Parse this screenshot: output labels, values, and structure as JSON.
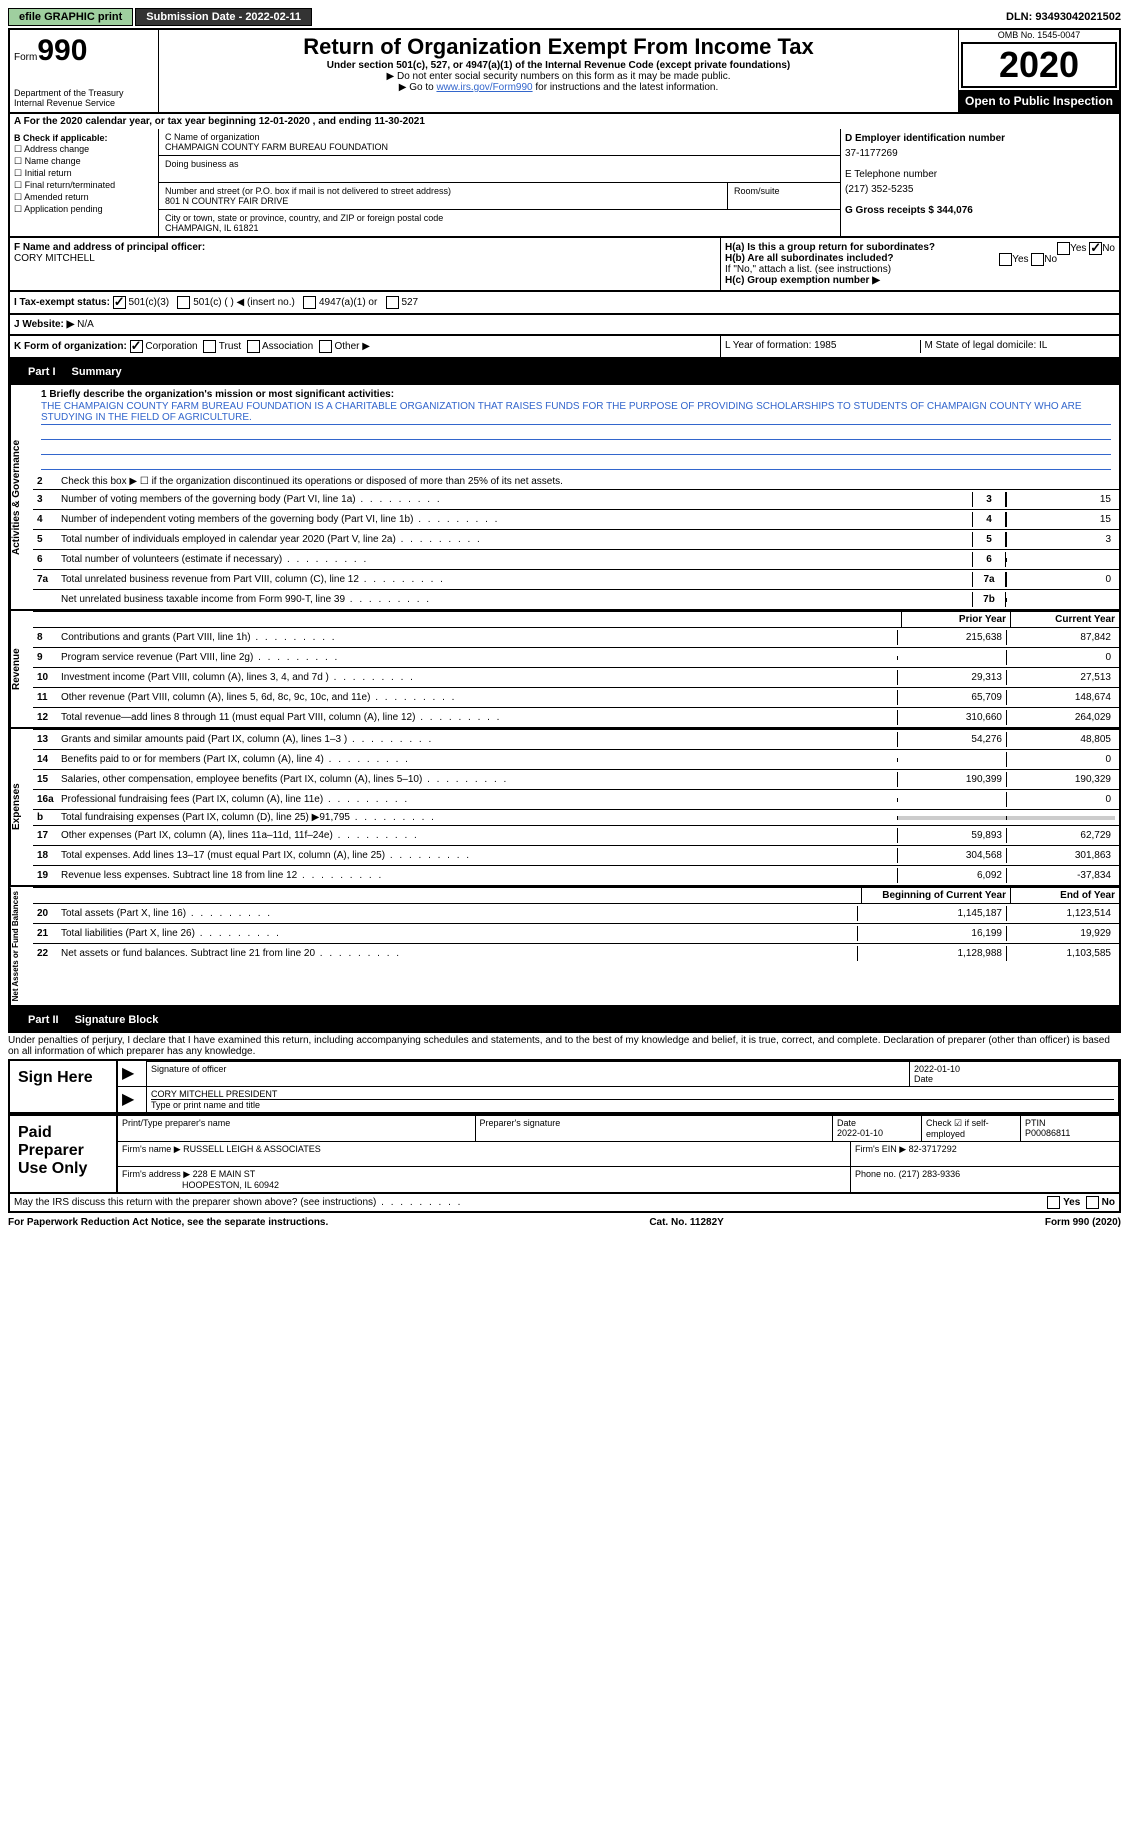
{
  "header": {
    "efile": "efile GRAPHIC print",
    "submission_label": "Submission Date - 2022-02-11",
    "dln": "DLN: 93493042021502"
  },
  "form": {
    "form_word": "Form",
    "form_num": "990",
    "title": "Return of Organization Exempt From Income Tax",
    "subtitle": "Under section 501(c), 527, or 4947(a)(1) of the Internal Revenue Code (except private foundations)",
    "instr1": "▶ Do not enter social security numbers on this form as it may be made public.",
    "instr2_pre": "▶ Go to ",
    "instr2_link": "www.irs.gov/Form990",
    "instr2_post": " for instructions and the latest information.",
    "dept": "Department of the Treasury\nInternal Revenue Service",
    "omb": "OMB No. 1545-0047",
    "year": "2020",
    "open_pub": "Open to Public Inspection"
  },
  "row_a": "A For the 2020 calendar year, or tax year beginning 12-01-2020    , and ending 11-30-2021",
  "section_b": {
    "label": "B Check if applicable:",
    "opts": [
      "Address change",
      "Name change",
      "Initial return",
      "Final return/terminated",
      "Amended return",
      "Application pending"
    ]
  },
  "section_c": {
    "name_label": "C Name of organization",
    "name": "CHAMPAIGN COUNTY FARM BUREAU FOUNDATION",
    "dba_label": "Doing business as",
    "street_label": "Number and street (or P.O. box if mail is not delivered to street address)",
    "room_label": "Room/suite",
    "street": "801 N COUNTRY FAIR DRIVE",
    "city_label": "City or town, state or province, country, and ZIP or foreign postal code",
    "city": "CHAMPAIGN, IL  61821"
  },
  "section_d": {
    "d_label": "D Employer identification number",
    "d_val": "37-1177269",
    "e_label": "E Telephone number",
    "e_val": "(217) 352-5235",
    "g_label": "G Gross receipts $ 344,076"
  },
  "section_f": {
    "label": "F  Name and address of principal officer:",
    "name": "CORY MITCHELL"
  },
  "section_h": {
    "ha": "H(a)  Is this a group return for subordinates?",
    "hb": "H(b)  Are all subordinates included?",
    "hb_note": "If \"No,\" attach a list. (see instructions)",
    "hc": "H(c)  Group exemption number ▶",
    "yes": "Yes",
    "no": "No"
  },
  "section_i": {
    "label": "I    Tax-exempt status:",
    "o1": "501(c)(3)",
    "o2": "501(c) (  ) ◀ (insert no.)",
    "o3": "4947(a)(1) or",
    "o4": "527"
  },
  "section_j": {
    "label": "J   Website: ▶",
    "val": "N/A"
  },
  "section_k": {
    "label": "K Form of organization:",
    "o1": "Corporation",
    "o2": "Trust",
    "o3": "Association",
    "o4": "Other ▶"
  },
  "section_lm": {
    "l": "L Year of formation: 1985",
    "m": "M State of legal domicile: IL"
  },
  "part1": {
    "tab": "Part I",
    "title": "Summary",
    "q1": "1   Briefly describe the organization's mission or most significant activities:",
    "mission": "THE CHAMPAIGN COUNTY FARM BUREAU FOUNDATION IS A CHARITABLE ORGANIZATION THAT RAISES FUNDS FOR THE PURPOSE OF PROVIDING SCHOLARSHIPS TO STUDENTS OF CHAMPAIGN COUNTY WHO ARE STUDYING IN THE FIELD OF AGRICULTURE.",
    "q2": "Check this box ▶ ☐  if the organization discontinued its operations or disposed of more than 25% of its net assets.",
    "side1": "Activities & Governance",
    "side2": "Revenue",
    "side3": "Expenses",
    "side4": "Net Assets or Fund Balances",
    "prior": "Prior Year",
    "current": "Current Year",
    "begin": "Beginning of Current Year",
    "end": "End of Year",
    "lines_gov": [
      {
        "n": "3",
        "d": "Number of voting members of the governing body (Part VI, line 1a)",
        "box": "3",
        "v": "15"
      },
      {
        "n": "4",
        "d": "Number of independent voting members of the governing body (Part VI, line 1b)",
        "box": "4",
        "v": "15"
      },
      {
        "n": "5",
        "d": "Total number of individuals employed in calendar year 2020 (Part V, line 2a)",
        "box": "5",
        "v": "3"
      },
      {
        "n": "6",
        "d": "Total number of volunteers (estimate if necessary)",
        "box": "6",
        "v": ""
      },
      {
        "n": "7a",
        "d": "Total unrelated business revenue from Part VIII, column (C), line 12",
        "box": "7a",
        "v": "0"
      },
      {
        "n": "",
        "d": "Net unrelated business taxable income from Form 990-T, line 39",
        "box": "7b",
        "v": ""
      }
    ],
    "lines_rev": [
      {
        "n": "8",
        "d": "Contributions and grants (Part VIII, line 1h)",
        "p": "215,638",
        "c": "87,842"
      },
      {
        "n": "9",
        "d": "Program service revenue (Part VIII, line 2g)",
        "p": "",
        "c": "0"
      },
      {
        "n": "10",
        "d": "Investment income (Part VIII, column (A), lines 3, 4, and 7d )",
        "p": "29,313",
        "c": "27,513"
      },
      {
        "n": "11",
        "d": "Other revenue (Part VIII, column (A), lines 5, 6d, 8c, 9c, 10c, and 11e)",
        "p": "65,709",
        "c": "148,674"
      },
      {
        "n": "12",
        "d": "Total revenue—add lines 8 through 11 (must equal Part VIII, column (A), line 12)",
        "p": "310,660",
        "c": "264,029"
      }
    ],
    "lines_exp": [
      {
        "n": "13",
        "d": "Grants and similar amounts paid (Part IX, column (A), lines 1–3 )",
        "p": "54,276",
        "c": "48,805"
      },
      {
        "n": "14",
        "d": "Benefits paid to or for members (Part IX, column (A), line 4)",
        "p": "",
        "c": "0"
      },
      {
        "n": "15",
        "d": "Salaries, other compensation, employee benefits (Part IX, column (A), lines 5–10)",
        "p": "190,399",
        "c": "190,329"
      },
      {
        "n": "16a",
        "d": "Professional fundraising fees (Part IX, column (A), line 11e)",
        "p": "",
        "c": "0"
      },
      {
        "n": "b",
        "d": "Total fundraising expenses (Part IX, column (D), line 25) ▶91,795",
        "p": "shade",
        "c": "shade"
      },
      {
        "n": "17",
        "d": "Other expenses (Part IX, column (A), lines 11a–11d, 11f–24e)",
        "p": "59,893",
        "c": "62,729"
      },
      {
        "n": "18",
        "d": "Total expenses. Add lines 13–17 (must equal Part IX, column (A), line 25)",
        "p": "304,568",
        "c": "301,863"
      },
      {
        "n": "19",
        "d": "Revenue less expenses. Subtract line 18 from line 12",
        "p": "6,092",
        "c": "-37,834"
      }
    ],
    "lines_net": [
      {
        "n": "20",
        "d": "Total assets (Part X, line 16)",
        "p": "1,145,187",
        "c": "1,123,514"
      },
      {
        "n": "21",
        "d": "Total liabilities (Part X, line 26)",
        "p": "16,199",
        "c": "19,929"
      },
      {
        "n": "22",
        "d": "Net assets or fund balances. Subtract line 21 from line 20",
        "p": "1,128,988",
        "c": "1,103,585"
      }
    ]
  },
  "part2": {
    "tab": "Part II",
    "title": "Signature Block",
    "declare": "Under penalties of perjury, I declare that I have examined this return, including accompanying schedules and statements, and to the best of my knowledge and belief, it is true, correct, and complete. Declaration of preparer (other than officer) is based on all information of which preparer has any knowledge."
  },
  "sign": {
    "label": "Sign Here",
    "sig_officer": "Signature of officer",
    "date_label": "Date",
    "date": "2022-01-10",
    "name": "CORY MITCHELL PRESIDENT",
    "name_label": "Type or print name and title"
  },
  "preparer": {
    "label": "Paid Preparer Use Only",
    "h1": "Print/Type preparer's name",
    "h2": "Preparer's signature",
    "h3": "Date",
    "h3v": "2022-01-10",
    "h4": "Check ☑ if self-employed",
    "h5": "PTIN",
    "h5v": "P00086811",
    "firm_label": "Firm's name    ▶",
    "firm": "RUSSELL LEIGH & ASSOCIATES",
    "ein_label": "Firm's EIN ▶",
    "ein": "82-3717292",
    "addr_label": "Firm's address ▶",
    "addr": "228 E MAIN ST",
    "addr2": "HOOPESTON, IL  60942",
    "phone_label": "Phone no.",
    "phone": "(217) 283-9336"
  },
  "may_irs": "May the IRS discuss this return with the preparer shown above? (see instructions)",
  "footer": {
    "left": "For Paperwork Reduction Act Notice, see the separate instructions.",
    "mid": "Cat. No. 11282Y",
    "right": "Form 990 (2020)"
  }
}
